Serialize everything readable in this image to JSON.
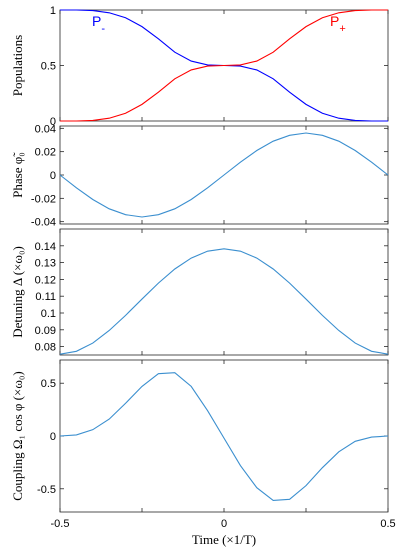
{
  "chart_data": [
    {
      "type": "line",
      "ylabel": "Populations",
      "xlim": [
        -0.5,
        0.5
      ],
      "ylim": [
        0,
        1
      ],
      "yticks": [
        0,
        0.5,
        1
      ],
      "ytick_labels": [
        "0",
        "0.5",
        "1"
      ],
      "x": [
        -0.5,
        -0.45,
        -0.4,
        -0.35,
        -0.3,
        -0.25,
        -0.2,
        -0.15,
        -0.1,
        -0.05,
        0,
        0.05,
        0.1,
        0.15,
        0.2,
        0.25,
        0.3,
        0.35,
        0.4,
        0.45,
        0.5
      ],
      "series": [
        {
          "name": "P-",
          "color": "#0000ff",
          "values": [
            1.0,
            1.0,
            0.995,
            0.975,
            0.93,
            0.85,
            0.74,
            0.62,
            0.54,
            0.505,
            0.5,
            0.495,
            0.46,
            0.38,
            0.26,
            0.15,
            0.07,
            0.025,
            0.005,
            0.0,
            0.0
          ]
        },
        {
          "name": "P+",
          "color": "#ff0000",
          "values": [
            0.0,
            0.0,
            0.005,
            0.025,
            0.07,
            0.15,
            0.26,
            0.38,
            0.46,
            0.495,
            0.5,
            0.505,
            0.54,
            0.62,
            0.74,
            0.85,
            0.93,
            0.975,
            0.995,
            1.0,
            1.0
          ]
        }
      ],
      "legend": [
        {
          "main": "P",
          "sub": "-",
          "color": "#0000ff"
        },
        {
          "main": "P",
          "sub": "+",
          "color": "#ff0000"
        }
      ]
    },
    {
      "type": "line",
      "ylabel": "Phase φ̃₀",
      "xlim": [
        -0.5,
        0.5
      ],
      "ylim": [
        -0.042,
        0.042
      ],
      "yticks": [
        -0.04,
        -0.02,
        0,
        0.02,
        0.04
      ],
      "ytick_labels": [
        "-0.04",
        "-0.02",
        "0",
        "0.02",
        "0.04"
      ],
      "x": [
        -0.5,
        -0.45,
        -0.4,
        -0.35,
        -0.3,
        -0.25,
        -0.2,
        -0.15,
        -0.1,
        -0.05,
        0,
        0.05,
        0.1,
        0.15,
        0.2,
        0.25,
        0.3,
        0.35,
        0.4,
        0.45,
        0.5
      ],
      "series": [
        {
          "color": "#3b8fcf",
          "values": [
            0.0,
            -0.011,
            -0.021,
            -0.029,
            -0.034,
            -0.036,
            -0.034,
            -0.029,
            -0.021,
            -0.011,
            0.0,
            0.011,
            0.021,
            0.029,
            0.034,
            0.036,
            0.034,
            0.029,
            0.021,
            0.011,
            0.0
          ]
        }
      ]
    },
    {
      "type": "line",
      "ylabel": "Detuning Δ (×ω₀)",
      "xlim": [
        -0.5,
        0.5
      ],
      "ylim": [
        0.075,
        0.15
      ],
      "yticks": [
        0.08,
        0.09,
        0.1,
        0.11,
        0.12,
        0.13,
        0.14
      ],
      "ytick_labels": [
        "0.08",
        "0.09",
        "0.1",
        "0.11",
        "0.12",
        "0.13",
        "0.14"
      ],
      "x": [
        -0.5,
        -0.45,
        -0.4,
        -0.35,
        -0.3,
        -0.25,
        -0.2,
        -0.15,
        -0.1,
        -0.05,
        0,
        0.05,
        0.1,
        0.15,
        0.2,
        0.25,
        0.3,
        0.35,
        0.4,
        0.45,
        0.5
      ],
      "series": [
        {
          "color": "#3b8fcf",
          "values": [
            0.0755,
            0.0772,
            0.0821,
            0.0896,
            0.0986,
            0.1083,
            0.1178,
            0.1262,
            0.1327,
            0.1368,
            0.1382,
            0.1368,
            0.1327,
            0.1262,
            0.1178,
            0.1083,
            0.0986,
            0.0896,
            0.0821,
            0.0772,
            0.0755
          ]
        }
      ]
    },
    {
      "type": "line",
      "ylabel": "Coupling Ω₁ cos φ (×ω₀)",
      "xlabel": "Time (×1/T)",
      "xlim": [
        -0.5,
        0.5
      ],
      "ylim": [
        -0.72,
        0.72
      ],
      "yticks": [
        -0.5,
        0,
        0.5
      ],
      "ytick_labels": [
        "-0.5",
        "0",
        "0.5"
      ],
      "xticks": [
        -0.5,
        0,
        0.5
      ],
      "xtick_labels": [
        "-0.5",
        "0",
        "0.5"
      ],
      "x": [
        -0.5,
        -0.45,
        -0.4,
        -0.35,
        -0.3,
        -0.25,
        -0.2,
        -0.15,
        -0.1,
        -0.05,
        0,
        0.05,
        0.1,
        0.15,
        0.2,
        0.25,
        0.3,
        0.35,
        0.4,
        0.45,
        0.5
      ],
      "series": [
        {
          "color": "#3b8fcf",
          "values": [
            0.0,
            0.01,
            0.06,
            0.16,
            0.31,
            0.47,
            0.59,
            0.6,
            0.47,
            0.24,
            -0.02,
            -0.28,
            -0.49,
            -0.61,
            -0.6,
            -0.47,
            -0.3,
            -0.15,
            -0.05,
            -0.01,
            0.0
          ]
        }
      ]
    }
  ]
}
